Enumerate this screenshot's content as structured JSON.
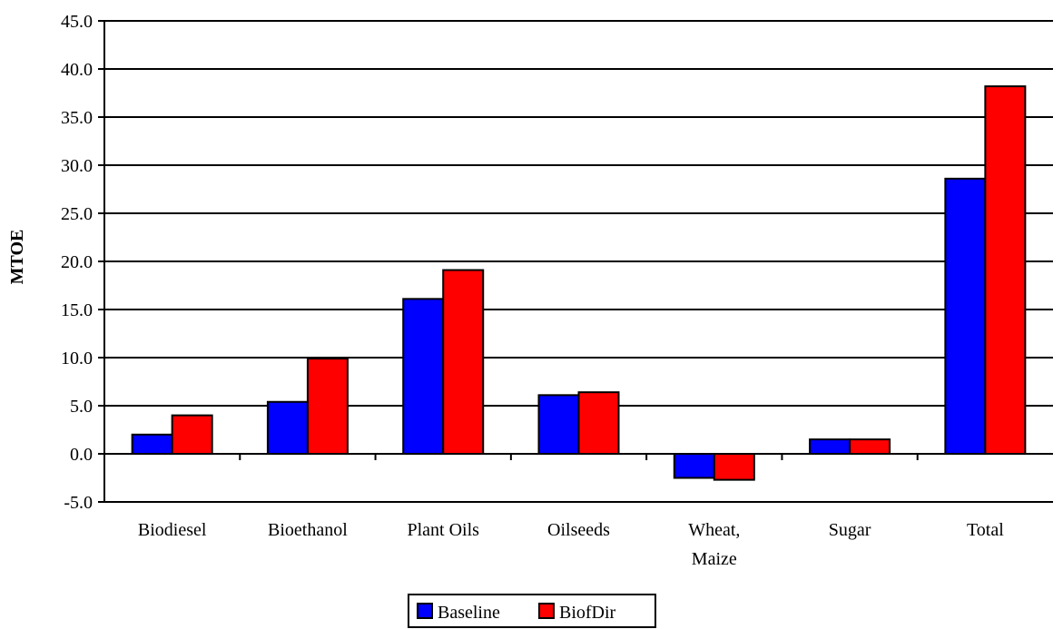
{
  "chart_data": {
    "type": "bar",
    "title": "",
    "xlabel": "",
    "ylabel": "MTOE",
    "ylim": [
      -5,
      45
    ],
    "y_ticks": [
      "45.0",
      "40.0",
      "35.0",
      "30.0",
      "25.0",
      "20.0",
      "15.0",
      "10.0",
      "5.0",
      "0.0",
      "-5.0"
    ],
    "y_tick_values": [
      45,
      40,
      35,
      30,
      25,
      20,
      15,
      10,
      5,
      0,
      -5
    ],
    "categories": [
      [
        "Biodiesel"
      ],
      [
        "Bioethanol"
      ],
      [
        "Plant Oils"
      ],
      [
        "Oilseeds"
      ],
      [
        "Wheat,",
        "Maize"
      ],
      [
        "Sugar"
      ],
      [
        "Total"
      ]
    ],
    "series": [
      {
        "name": "Baseline",
        "color": "#0000FF",
        "values": [
          2.0,
          5.4,
          16.1,
          6.1,
          -2.5,
          1.5,
          28.6
        ]
      },
      {
        "name": "BiofDir",
        "color": "#FF0000",
        "values": [
          4.0,
          9.9,
          19.1,
          6.4,
          -2.7,
          1.5,
          38.2
        ]
      }
    ],
    "grid": true,
    "legend": "bottom-center"
  }
}
